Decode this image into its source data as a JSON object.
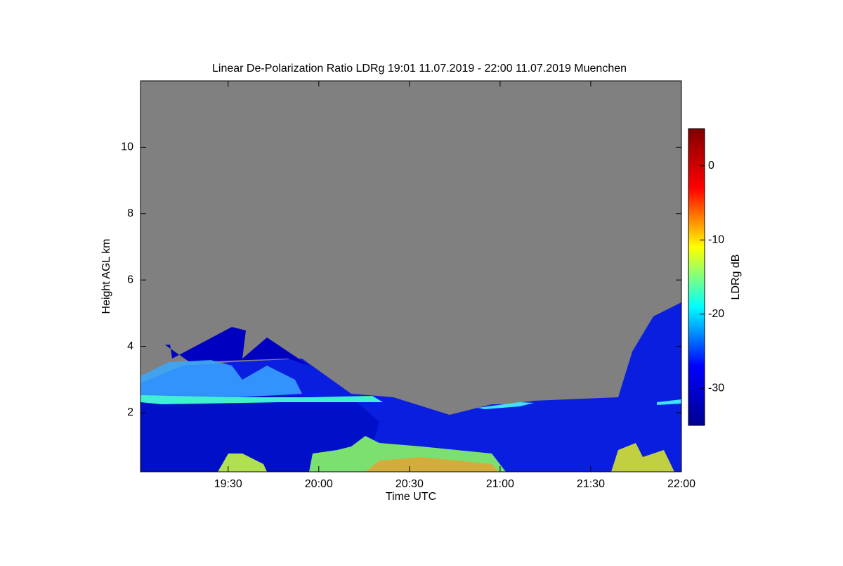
{
  "chart_data": {
    "type": "heatmap",
    "title": "Linear De-Polarization Ratio LDRg   19:01 11.07.2019 - 22:00 11.07.2019 Muenchen",
    "x_label": "Time UTC",
    "y_label": "Height AGL km",
    "xlim": [
      1141,
      1320
    ],
    "xticks": [
      {
        "value": 1170,
        "label": "19:30"
      },
      {
        "value": 1200,
        "label": "20:00"
      },
      {
        "value": 1230,
        "label": "20:30"
      },
      {
        "value": 1260,
        "label": "21:00"
      },
      {
        "value": 1290,
        "label": "21:30"
      },
      {
        "value": 1320,
        "label": "22:00"
      }
    ],
    "ylim": [
      0.22,
      12
    ],
    "yticks": [
      2,
      4,
      6,
      8,
      10
    ],
    "colorbar": {
      "label": "LDRg dB",
      "lim": [
        -35,
        5
      ],
      "ticks": [
        0,
        -10,
        -20,
        -30
      ],
      "colormap": [
        "#00008f",
        "#0000ff",
        "#00ffff",
        "#ffff00",
        "#ff0000",
        "#800000"
      ]
    },
    "background": "#808080"
  }
}
